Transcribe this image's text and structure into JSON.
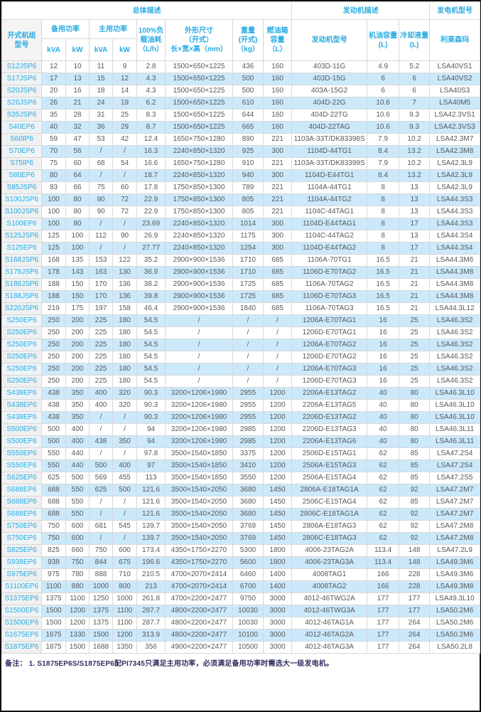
{
  "colors": {
    "accent": "#29abe2",
    "stripe": "#cbe9fa",
    "model_column_bg": "#f0f0f0",
    "data_text": "#58595b",
    "note_text": "#2f2f5f",
    "grid_border": "#d8d8d8",
    "frame_border": "#111111"
  },
  "table": {
    "header": {
      "group_overall": "总体描述",
      "group_engine": "发动机描述",
      "group_alternator": "发电机型号",
      "col_model": "开式机组\n型号",
      "col_standby_power": "备用功率",
      "col_prime_power": "主用功率",
      "unit_kva": "kVA",
      "unit_kw": "kW",
      "col_fuel_consumption": "100%负载油耗\n（L/h）",
      "col_dimensions": "外形尺寸\n（开式）\n长×宽×高（mm）",
      "col_weight": "重量\n(开式)\n（kg）",
      "col_fuel_tank": "燃油箱容量\n（L）",
      "col_engine_model": "发动机型号",
      "col_oil_capacity": "机油容量\n(L)",
      "col_coolant_capacity": "冷却液量\n(L)",
      "col_alternator_brand": "利莱森玛"
    },
    "rows": [
      [
        "S12JSP6",
        "12",
        "10",
        "11",
        "9",
        "2.8",
        "1500×650×1225",
        "436",
        "160",
        "403D-11G",
        "4.9",
        "5.2",
        "LSA40VS1"
      ],
      [
        "S17JSP6",
        "17",
        "13",
        "15",
        "12",
        "4.3",
        "1500×650×1225",
        "500",
        "160",
        "403D-15G",
        "6",
        "6",
        "LSA40VS2"
      ],
      [
        "S20JSP6",
        "20",
        "16",
        "18",
        "14",
        "4.3",
        "1500×650×1225",
        "500",
        "160",
        "403A-15G2",
        "6",
        "6",
        "LSA40S3"
      ],
      [
        "S26JSP6",
        "26",
        "21",
        "24",
        "19",
        "6.2",
        "1500×650×1225",
        "610",
        "160",
        "404D-22G",
        "10.6",
        "7",
        "LSA40M5"
      ],
      [
        "S35JSP6",
        "35",
        "28",
        "31",
        "25",
        "8.3",
        "1500×650×1225",
        "644",
        "160",
        "404D-22TG",
        "10.6",
        "9.3",
        "LSA42.3VS1"
      ],
      [
        "S40EP6",
        "40",
        "32",
        "36",
        "29",
        "8.7",
        "1500×650×1225",
        "665",
        "160",
        "404D-22TAG",
        "10.6",
        "9.3",
        "LSA42.3VS3"
      ],
      [
        "S60IP6",
        "59",
        "47",
        "53",
        "42",
        "12.4",
        "1650×750×1280",
        "890",
        "221",
        "1103A-33T/DK83398S",
        "7.9",
        "10.2",
        "LSA42.3M7"
      ],
      [
        "S70EP6",
        "70",
        "56",
        "/",
        "/",
        "16.3",
        "2240×850×1320",
        "925",
        "300",
        "1104D-44TG1",
        "8.4",
        "13.2",
        "LSA42.3M8"
      ],
      [
        "S75IP6",
        "75",
        "60",
        "68",
        "54",
        "16.6",
        "1650×750×1280",
        "910",
        "221",
        "1103A-33T/DK83399S",
        "7.9",
        "10.2",
        "LSA42.3L9"
      ],
      [
        "S80EP6",
        "80",
        "64",
        "/",
        "/",
        "18.7",
        "2240×850×1320",
        "940",
        "300",
        "1104D-E44TG1",
        "8.4",
        "13.2",
        "LSA42.3L9"
      ],
      [
        "S85JSP6",
        "83",
        "66",
        "75",
        "60",
        "17.8",
        "1750×850×1300",
        "789",
        "221",
        "1104A-44TG1",
        "8",
        "13",
        "LSA42.3L9"
      ],
      [
        "S100JSP6",
        "100",
        "80",
        "90",
        "72",
        "22.9",
        "1750×850×1300",
        "805",
        "221",
        "1104A-44TG2",
        "8",
        "13",
        "LSA44.3S3"
      ],
      [
        "S100JSP6",
        "100",
        "80",
        "90",
        "72",
        "22.9",
        "1750×850×1300",
        "805",
        "221",
        "1104C-44TAG1",
        "8",
        "13",
        "LSA44.3S3"
      ],
      [
        "S100EP6",
        "100",
        "80",
        "/",
        "/",
        "23.69",
        "2240×850×1320",
        "1014",
        "300",
        "1104D-E44TAG1",
        "8",
        "17",
        "LSA44.3S3"
      ],
      [
        "S125JSP6",
        "125",
        "100",
        "112",
        "90",
        "26.9",
        "2240×850×1320",
        "1175",
        "300",
        "1104C-44TAG2",
        "8",
        "13",
        "LSA44.3S4"
      ],
      [
        "S125EP6",
        "125",
        "100",
        "/",
        "/",
        "27.77",
        "2240×850×1320",
        "1254",
        "300",
        "1104D-E44TAG2",
        "8",
        "17",
        "LSA44.3S4"
      ],
      [
        "S168JSP6",
        "168",
        "135",
        "153",
        "122",
        "35.2",
        "2900×900×1536",
        "1710",
        "685",
        "1106A-70TG1",
        "16.5",
        "21",
        "LSA44.3M6"
      ],
      [
        "S178JSP6",
        "178",
        "143",
        "163",
        "130",
        "36.9",
        "2900×900×1536",
        "1710",
        "685",
        "1106D-E70TAG2",
        "16.5",
        "21",
        "LSA44.3M8"
      ],
      [
        "S188JSP6",
        "188",
        "150",
        "170",
        "136",
        "38.2",
        "2900×900×1536",
        "1725",
        "685",
        "1106A-70TAG2",
        "16.5",
        "21",
        "LSA44.3M8"
      ],
      [
        "S188JSP6",
        "188",
        "150",
        "170",
        "136",
        "39.8",
        "2900×900×1536",
        "1725",
        "685",
        "1106D-E70TAG3",
        "16.5",
        "21",
        "LSA44.3M8"
      ],
      [
        "S220JSP6",
        "219",
        "175",
        "197",
        "158",
        "46.4",
        "2900×900×1536",
        "1840",
        "685",
        "1106A-70TAG3",
        "16.5",
        "21",
        "LSA44.3L12"
      ],
      [
        "S250EP6",
        "250",
        "200",
        "225",
        "180",
        "54.5",
        "/",
        "/",
        "/",
        "1206A-E70TAG1",
        "16",
        "25",
        "LSA46.3S2"
      ],
      [
        "S250EP6",
        "250",
        "200",
        "225",
        "180",
        "54.5",
        "/",
        "/",
        "/",
        "1206D-E70TAG1",
        "16",
        "25",
        "LSA46.3S2"
      ],
      [
        "S250EP6",
        "250",
        "200",
        "225",
        "180",
        "54.5",
        "/",
        "/",
        "/",
        "1206A-E70TAG2",
        "16",
        "25",
        "LSA46.3S2"
      ],
      [
        "S250EP6",
        "250",
        "200",
        "225",
        "180",
        "54.5",
        "/",
        "/",
        "/",
        "1206D-E70TAG2",
        "16",
        "25",
        "LSA46.3S2"
      ],
      [
        "S250EP6",
        "250",
        "200",
        "225",
        "180",
        "54.5",
        "/",
        "/",
        "/",
        "1206A-E70TAG3",
        "16",
        "25",
        "LSA46.3S2"
      ],
      [
        "S250EP6",
        "250",
        "200",
        "225",
        "180",
        "54.5",
        "/",
        "/",
        "/",
        "1206D-E70TAG3",
        "16",
        "25",
        "LSA46.3S2"
      ],
      [
        "S438EP6",
        "438",
        "350",
        "400",
        "320",
        "90.3",
        "3200×1206×1980",
        "2955",
        "1200",
        "2206A-E13TAG2",
        "40",
        "80",
        "LSA46.3L10"
      ],
      [
        "S438EP6",
        "438",
        "350",
        "400",
        "320",
        "90.3",
        "3200×1206×1980",
        "2955",
        "1200",
        "2206A-E13TAG5",
        "40",
        "80",
        "LSA46.3L10"
      ],
      [
        "S438EP6",
        "438",
        "350",
        "/",
        "/",
        "90.3",
        "3200×1206×1980",
        "2955",
        "1200",
        "2206D-E13TAG2",
        "40",
        "80",
        "LSA46.3L10"
      ],
      [
        "S500EP6",
        "500",
        "400",
        "/",
        "/",
        "94",
        "3200×1206×1980",
        "2985",
        "1200",
        "2206D-E13TAG3",
        "40",
        "80",
        "LSA46.3L11"
      ],
      [
        "S500EP6",
        "500",
        "400",
        "438",
        "350",
        "94",
        "3200×1206×1980",
        "2985",
        "1200",
        "2206A-E13TAG6",
        "40",
        "80",
        "LSA46.3L11"
      ],
      [
        "S550EP6",
        "550",
        "440",
        "/",
        "/",
        "97.8",
        "3500×1540×1850",
        "3375",
        "1200",
        "2506D-E15TAG1",
        "62",
        "85",
        "LSA47.2S4"
      ],
      [
        "S550EP6",
        "550",
        "440",
        "500",
        "400",
        "97",
        "3500×1540×1850",
        "3410",
        "1200",
        "2506A-E15TAG3",
        "62",
        "85",
        "LSA47.2S4"
      ],
      [
        "S625EP6",
        "625",
        "500",
        "569",
        "455",
        "113",
        "3500×1540×1850",
        "3550",
        "1200",
        "2506A-E15TAG4",
        "62",
        "85",
        "LSA47.2S5"
      ],
      [
        "S688EP6",
        "688",
        "550",
        "625",
        "500",
        "121.6",
        "3500×1540×2050",
        "3680",
        "1450",
        "2806A-E18TAG1A",
        "62",
        "92",
        "LSA47.2M7"
      ],
      [
        "S688EP6",
        "688",
        "550",
        "/",
        "/",
        "121.6",
        "3500×1540×2050",
        "3680",
        "1450",
        "2506C-E15TAG4",
        "62",
        "85",
        "LSA47.2M7"
      ],
      [
        "S688EP6",
        "688",
        "550",
        "/",
        "/",
        "121.6",
        "3500×1540×2050",
        "3680",
        "1450",
        "2806C-E18TAG1A",
        "62",
        "92",
        "LSA47.2M7"
      ],
      [
        "S750EP6",
        "750",
        "600",
        "681",
        "545",
        "139.7",
        "3500×1540×2050",
        "3769",
        "1450",
        "2806A-E18TAG3",
        "62",
        "92",
        "LSA47.2M8"
      ],
      [
        "S750EP6",
        "750",
        "600",
        "/",
        "/",
        "139.7",
        "3500×1540×2050",
        "3769",
        "1450",
        "2806C-E18TAG3",
        "62",
        "92",
        "LSA47.2M8"
      ],
      [
        "S825EP6",
        "825",
        "660",
        "750",
        "600",
        "173.4",
        "4350×1750×2270",
        "5300",
        "1800",
        "4006-23TAG2A",
        "113.4",
        "148",
        "LSA47.2L9"
      ],
      [
        "S938EP6",
        "938",
        "750",
        "844",
        "675",
        "196.6",
        "4350×1750×2270",
        "5600",
        "1800",
        "4006-23TAG3A",
        "113.4",
        "148",
        "LSA49.3M6"
      ],
      [
        "S975EP6",
        "975",
        "780",
        "888",
        "710",
        "210.5",
        "4700×2070×2414",
        "6460",
        "1400",
        "4008TAG1",
        "166",
        "228",
        "LSA49.3M6"
      ],
      [
        "S1100EP6",
        "1100",
        "880",
        "1000",
        "800",
        "213",
        "4700×2070×2414",
        "6700",
        "1400",
        "4008TAG2",
        "166",
        "228",
        "LSA49.3M8"
      ],
      [
        "S1375EP6",
        "1375",
        "1100",
        "1250",
        "1000",
        "261.8",
        "4700×2200×2477",
        "9750",
        "3000",
        "4012-46TWG2A",
        "177",
        "177",
        "LSA49.3L10"
      ],
      [
        "S1500EP6",
        "1500",
        "1200",
        "1375",
        "1100",
        "287.7",
        "4800×2200×2477",
        "10030",
        "3000",
        "4012-46TWG3A",
        "177",
        "177",
        "LSA50.2M6"
      ],
      [
        "S1500EP6",
        "1500",
        "1200",
        "1375",
        "1100",
        "287.7",
        "4800×2200×2477",
        "10030",
        "3000",
        "4012-46TAG1A",
        "177",
        "264",
        "LSA50.2M6"
      ],
      [
        "S1675EP6",
        "1675",
        "1330",
        "1500",
        "1200",
        "313.9",
        "4800×2200×2477",
        "10100",
        "3000",
        "4012-46TAG2A",
        "177",
        "264",
        "LSA50.2M6"
      ],
      [
        "S1875EP6",
        "1875",
        "1500",
        "1688",
        "1350",
        "356",
        "4900×2200×2477",
        "10500",
        "3000",
        "4012-46TAG3A",
        "177",
        "264",
        "LSA50.2L8"
      ]
    ]
  },
  "footer": {
    "note": "备注：  1.  S1875EP6S/S1875EP6配PI7345只满足主用功率，必须满足备用功率时需选大一级发电机。"
  }
}
